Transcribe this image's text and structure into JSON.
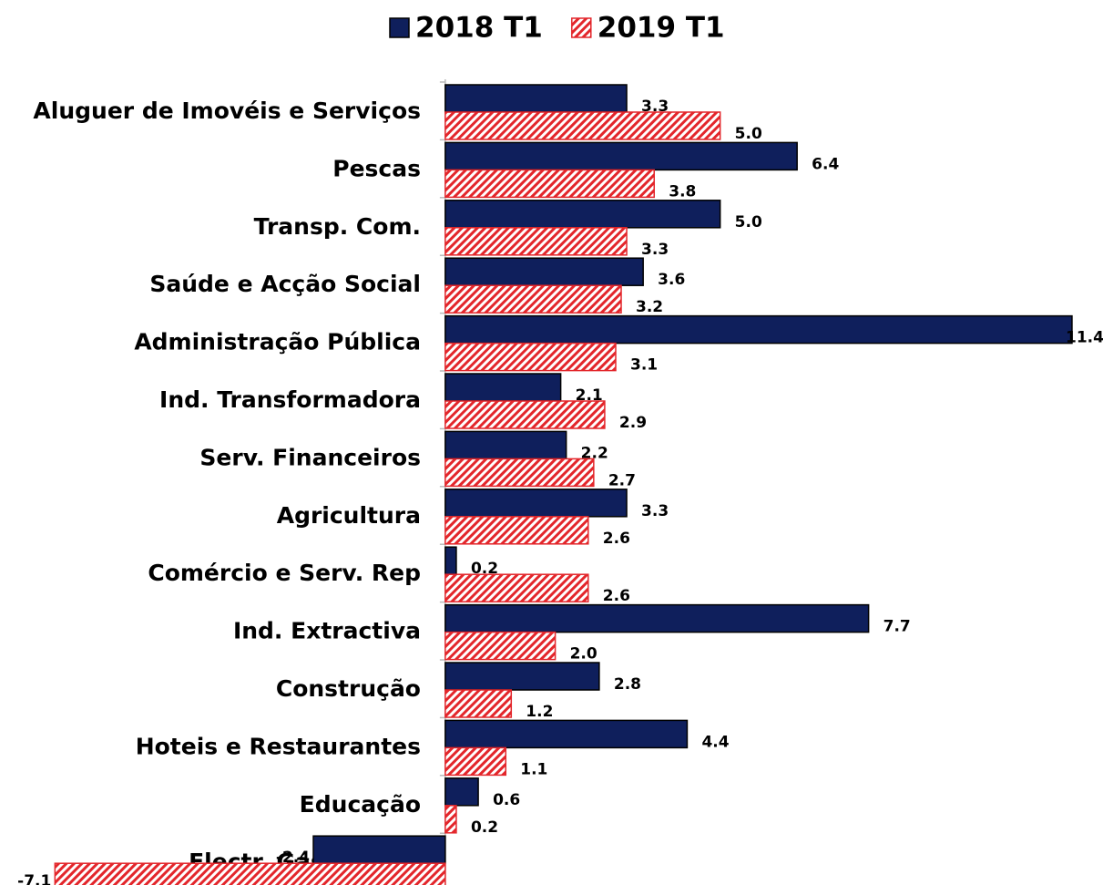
{
  "chart_data": {
    "type": "hbar",
    "categories": [
      "Aluguer de Imovéis e Serviços",
      "Pescas",
      "Transp. Com.",
      "Saúde e Acção Social",
      "Administração Pública",
      "Ind. Transformadora",
      "Serv. Financeiros",
      "Agricultura",
      "Comércio e Serv. Rep",
      "Ind. Extractiva",
      "Construção",
      "Hoteis e Restaurantes",
      "Educação",
      "Electr. Gás e Agua"
    ],
    "series": [
      {
        "name": "2018 T1",
        "color": "#0f1f5c",
        "pattern": "solid",
        "values": [
          3.3,
          6.4,
          5.0,
          3.6,
          11.4,
          2.1,
          2.2,
          3.3,
          0.2,
          7.7,
          2.8,
          4.4,
          0.6,
          -2.4
        ],
        "value_labels": [
          "3.3",
          "6.4",
          "5.0",
          "3.6",
          "11.4",
          "2.1",
          "2.2",
          "3.3",
          "0.2",
          "7.7",
          "2.8",
          "4.4",
          "0.6",
          "-2.4"
        ]
      },
      {
        "name": "2019 T1",
        "color": "#e3262b",
        "pattern": "hatch",
        "values": [
          5.0,
          3.8,
          3.3,
          3.2,
          3.1,
          2.9,
          2.7,
          2.6,
          2.6,
          2.0,
          1.2,
          1.1,
          0.2,
          -7.1
        ],
        "value_labels": [
          "5.0",
          "3.8",
          "3.3",
          "3.2",
          "3.1",
          "2.9",
          "2.7",
          "2.6",
          "2.6",
          "2.0",
          "1.2",
          "1.1",
          "0.2",
          "-7.1"
        ]
      }
    ],
    "xlim": [
      -8,
      11.5
    ],
    "legend": "top"
  }
}
